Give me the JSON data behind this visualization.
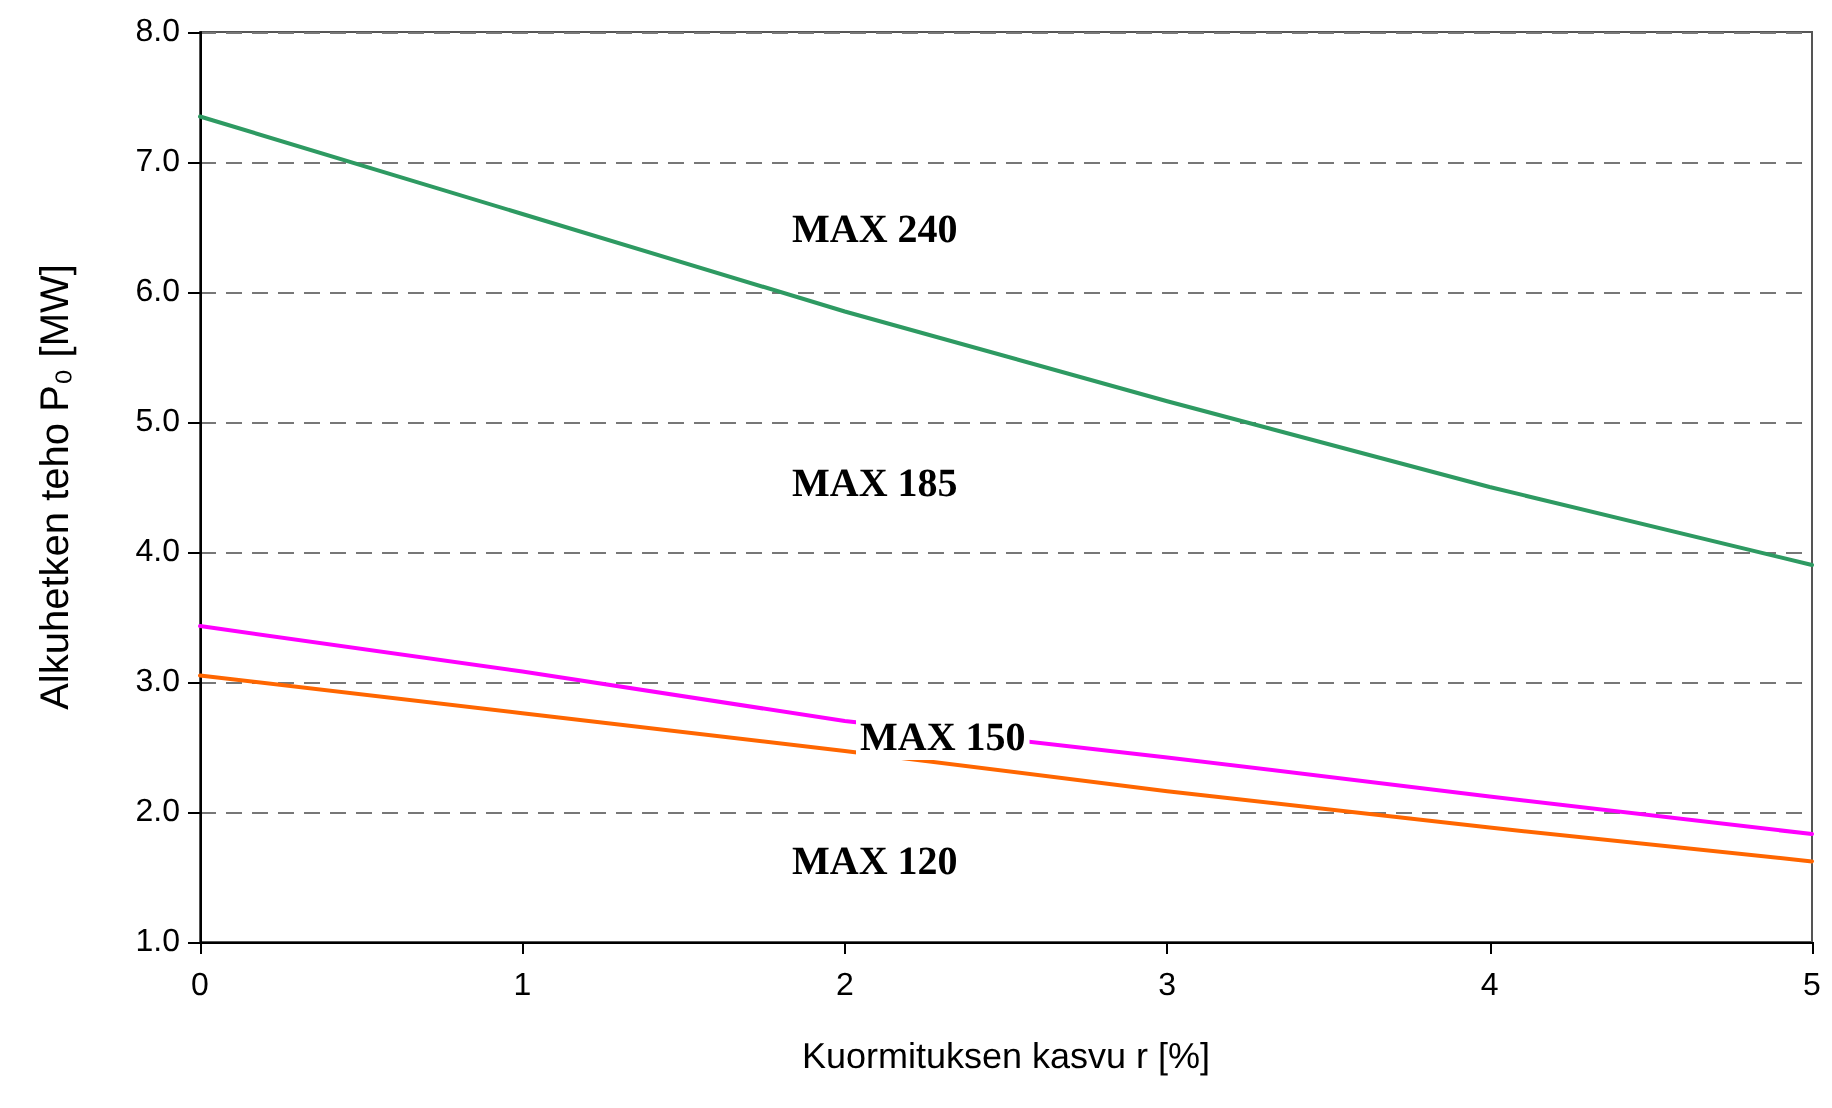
{
  "chart_data": {
    "type": "line",
    "xlabel": "Kuormituksen kasvu r [%]",
    "ylabel": "Alkuhetken teho P₀ [MW]",
    "x": [
      0,
      1,
      2,
      3,
      4,
      5
    ],
    "series": [
      {
        "color": "#2e9a62",
        "values": [
          7.35,
          6.6,
          5.85,
          5.16,
          4.5,
          3.9
        ]
      },
      {
        "color": "#ff00ff",
        "values": [
          3.43,
          3.08,
          2.7,
          2.42,
          2.12,
          1.83
        ]
      },
      {
        "color": "#ff6600",
        "values": [
          3.05,
          2.76,
          2.47,
          2.16,
          1.88,
          1.62
        ]
      }
    ],
    "xlim": [
      0,
      5
    ],
    "xticks": [
      0,
      1,
      2,
      3,
      4,
      5
    ],
    "ylim": [
      1,
      8
    ],
    "yticks": [
      {
        "value": 1,
        "label": "1.0"
      },
      {
        "value": 2,
        "label": "2.0"
      },
      {
        "value": 3,
        "label": "3.0"
      },
      {
        "value": 4,
        "label": "4.0"
      },
      {
        "value": 5,
        "label": "5.0"
      },
      {
        "value": 6,
        "label": "6.0"
      },
      {
        "value": 7,
        "label": "7.0"
      },
      {
        "value": 8,
        "label": "8.0"
      }
    ],
    "annotations": [
      "MAX 240",
      "MAX 185",
      "MAX 150",
      "MAX 120"
    ],
    "grid": "y",
    "marker": "none",
    "line_style": "solid"
  }
}
